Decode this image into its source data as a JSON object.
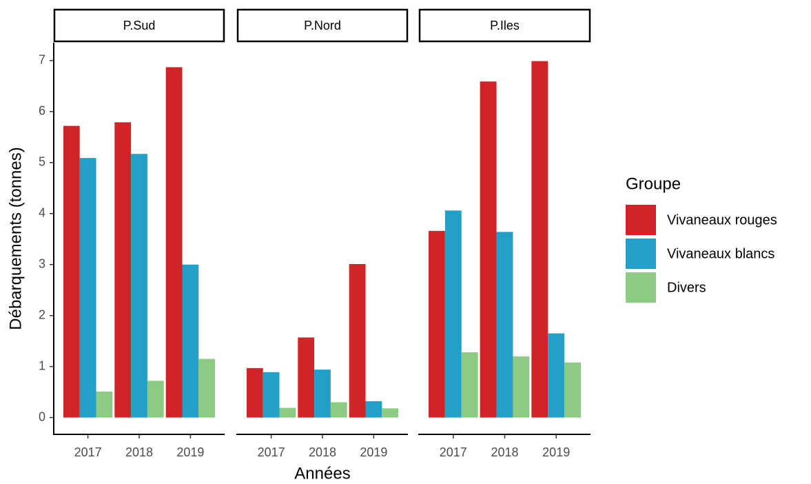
{
  "ylabel": "Débarquements (tonnes)",
  "xlabel": "Années",
  "legend_title": "Groupe",
  "chart_data": [
    {
      "type": "bar",
      "title": "P.Sud",
      "categories": [
        "2017",
        "2018",
        "2019"
      ],
      "series": [
        {
          "name": "Vivaneaux rouges",
          "color": "#d12427",
          "values": [
            5.72,
            5.79,
            6.87
          ]
        },
        {
          "name": "Vivaneaux blancs",
          "color": "#22a0c8",
          "values": [
            5.09,
            5.17,
            3.0
          ]
        },
        {
          "name": "Divers",
          "color": "#8dcb85",
          "values": [
            0.51,
            0.72,
            1.15
          ]
        }
      ],
      "ylim": [
        -0.33,
        7.35
      ],
      "yticks": [
        0,
        1,
        2,
        3,
        4,
        5,
        6,
        7
      ]
    },
    {
      "type": "bar",
      "title": "P.Nord",
      "categories": [
        "2017",
        "2018",
        "2019"
      ],
      "series": [
        {
          "name": "Vivaneaux rouges",
          "color": "#d12427",
          "values": [
            0.97,
            1.57,
            3.01
          ]
        },
        {
          "name": "Vivaneaux blancs",
          "color": "#22a0c8",
          "values": [
            0.89,
            0.94,
            0.32
          ]
        },
        {
          "name": "Divers",
          "color": "#8dcb85",
          "values": [
            0.19,
            0.3,
            0.18
          ]
        }
      ],
      "ylim": [
        -0.33,
        7.35
      ],
      "yticks": [
        0,
        1,
        2,
        3,
        4,
        5,
        6,
        7
      ]
    },
    {
      "type": "bar",
      "title": "P.Iles",
      "categories": [
        "2017",
        "2018",
        "2019"
      ],
      "series": [
        {
          "name": "Vivaneaux rouges",
          "color": "#d12427",
          "values": [
            3.66,
            6.59,
            6.99
          ]
        },
        {
          "name": "Vivaneaux blancs",
          "color": "#22a0c8",
          "values": [
            4.06,
            3.64,
            1.65
          ]
        },
        {
          "name": "Divers",
          "color": "#8dcb85",
          "values": [
            1.28,
            1.2,
            1.08
          ]
        }
      ],
      "ylim": [
        -0.33,
        7.35
      ],
      "yticks": [
        0,
        1,
        2,
        3,
        4,
        5,
        6,
        7
      ]
    }
  ]
}
